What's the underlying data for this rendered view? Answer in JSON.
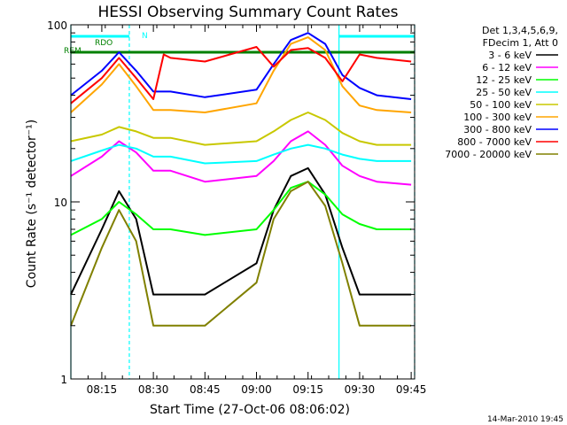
{
  "chart_data": {
    "type": "line",
    "title": "HESSI Observing Summary Count Rates",
    "xlabel": "Start Time (27-Oct-06 08:06:02)",
    "ylabel": "Count Rate (s⁻¹ detector⁻¹)",
    "yscale": "log",
    "ylim": [
      1,
      100
    ],
    "xlim": [
      "08:06",
      "09:46"
    ],
    "x_ticks": [
      "08:15",
      "08:30",
      "08:45",
      "09:00",
      "09:15",
      "09:30",
      "09:45"
    ],
    "y_ticks": [
      "1",
      "10",
      "100"
    ],
    "legend_header": [
      "Det 1,3,4,5,6,9,",
      "FDecim 1, Att 0"
    ],
    "legend_position": "right",
    "footer": "14-Mar-2010 19:45",
    "annotations": [
      {
        "label": "N",
        "color": "#00ffff"
      },
      {
        "label": "RDO",
        "color": "#008000"
      },
      {
        "label": "REM",
        "color": "#008000"
      }
    ],
    "x": [
      "08:06",
      "08:15",
      "08:20",
      "08:25",
      "08:30",
      "08:33",
      "08:35",
      "08:45",
      "09:00",
      "09:05",
      "09:10",
      "09:15",
      "09:20",
      "09:25",
      "09:30",
      "09:35",
      "09:45"
    ],
    "series": [
      {
        "name": "3 - 6 keV",
        "color": "#000000",
        "values": [
          3.0,
          7.0,
          11.5,
          8.0,
          3.0,
          3.0,
          3.0,
          3.0,
          4.5,
          9.0,
          14.0,
          15.5,
          11.0,
          5.5,
          3.0,
          3.0,
          3.0
        ]
      },
      {
        "name": "6 - 12 keV",
        "color": "#ff00ff",
        "values": [
          14.0,
          18.0,
          22.0,
          19.0,
          15.0,
          15.0,
          15.0,
          13.0,
          14.0,
          17.0,
          22.0,
          25.0,
          21.0,
          16.0,
          14.0,
          13.0,
          12.5
        ]
      },
      {
        "name": "12 - 25 keV",
        "color": "#00ff00",
        "values": [
          6.5,
          8.0,
          10.0,
          8.5,
          7.0,
          7.0,
          7.0,
          6.5,
          7.0,
          9.0,
          12.0,
          13.0,
          11.0,
          8.5,
          7.5,
          7.0,
          7.0
        ]
      },
      {
        "name": "25 - 50 keV",
        "color": "#00ffff",
        "values": [
          17.0,
          19.5,
          21.0,
          20.0,
          18.0,
          18.0,
          18.0,
          16.5,
          17.0,
          18.5,
          20.0,
          21.0,
          20.0,
          18.5,
          17.5,
          17.0,
          17.0
        ]
      },
      {
        "name": "50 - 100 keV",
        "color": "#c8c800",
        "values": [
          22.0,
          24.0,
          26.5,
          25.0,
          23.0,
          23.0,
          23.0,
          21.0,
          22.0,
          25.0,
          29.0,
          32.0,
          29.0,
          24.5,
          22.0,
          21.0,
          21.0
        ]
      },
      {
        "name": "100 - 300 keV",
        "color": "#ffa500",
        "values": [
          32.0,
          46.0,
          60.0,
          45.0,
          33.0,
          33.0,
          33.0,
          32.0,
          36.0,
          55.0,
          78.0,
          85.0,
          72.0,
          45.0,
          35.0,
          33.0,
          32.0
        ]
      },
      {
        "name": "300 - 800 keV",
        "color": "#0000ff",
        "values": [
          40.0,
          55.0,
          70.0,
          55.0,
          42.0,
          42.0,
          42.0,
          39.0,
          43.0,
          60.0,
          82.0,
          90.0,
          78.0,
          52.0,
          44.0,
          40.0,
          38.0
        ]
      },
      {
        "name": "800 - 7000 keV",
        "color": "#ff0000",
        "values": [
          36.0,
          50.0,
          65.0,
          50.0,
          38.0,
          68.0,
          65.0,
          62.0,
          75.0,
          58.0,
          72.0,
          74.0,
          65.0,
          48.0,
          68.0,
          65.0,
          62.0
        ]
      },
      {
        "name": "7000 - 20000 keV",
        "color": "#808000",
        "values": [
          2.0,
          5.5,
          9.0,
          6.0,
          2.0,
          2.0,
          2.0,
          2.0,
          3.5,
          8.0,
          11.5,
          13.0,
          9.5,
          4.5,
          2.0,
          2.0,
          2.0
        ]
      }
    ]
  }
}
